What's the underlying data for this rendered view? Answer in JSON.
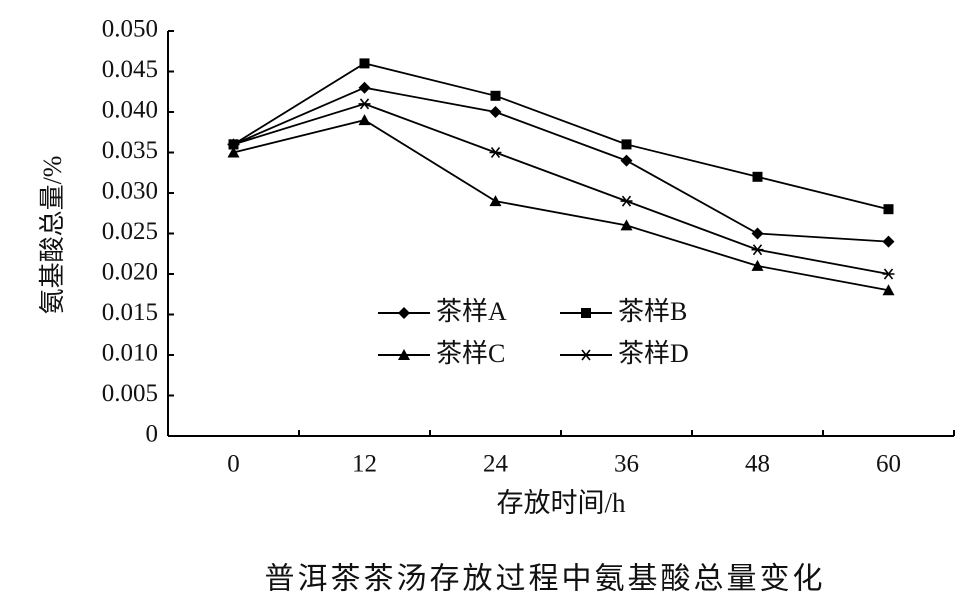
{
  "chart_data": {
    "type": "line",
    "caption": "普洱茶茶汤存放过程中氨基酸总量变化",
    "xlabel": "存放时间/h",
    "ylabel": "氨基酸总量/%",
    "categories": [
      "0",
      "12",
      "24",
      "36",
      "48",
      "60"
    ],
    "series": [
      {
        "name": "茶样A",
        "color": "#000000",
        "marker": "diamond",
        "values": [
          0.036,
          0.043,
          0.04,
          0.034,
          0.025,
          0.024
        ]
      },
      {
        "name": "茶样B",
        "color": "#000000",
        "marker": "square",
        "values": [
          0.036,
          0.046,
          0.042,
          0.036,
          0.032,
          0.028
        ]
      },
      {
        "name": "茶样C",
        "color": "#000000",
        "marker": "triangle",
        "values": [
          0.035,
          0.039,
          0.029,
          0.026,
          0.021,
          0.018
        ]
      },
      {
        "name": "茶样D",
        "color": "#000000",
        "marker": "star",
        "values": [
          0.036,
          0.041,
          0.035,
          0.029,
          0.023,
          0.02
        ]
      }
    ],
    "ylim": [
      0,
      0.05
    ],
    "yticks": [
      0,
      0.005,
      {
        "value": 0.01,
        "label": "0.010"
      },
      0.015,
      {
        "value": 0.02,
        "label": "0.020"
      },
      0.025,
      {
        "value": 0.03,
        "label": "0.030"
      },
      0.035,
      {
        "value": 0.04,
        "label": "0.040"
      },
      0.045,
      {
        "value": 0.05,
        "label": "0.050"
      }
    ],
    "grid": false
  }
}
